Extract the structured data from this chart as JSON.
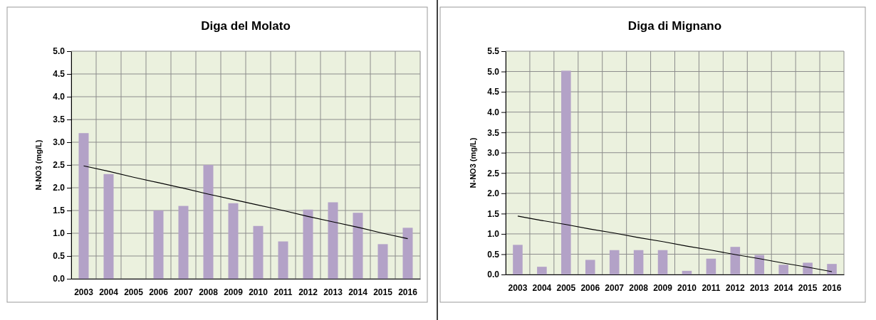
{
  "chart_data": [
    {
      "type": "bar",
      "title": "Diga del Molato",
      "ylabel": "N-NO3 (mg/L)",
      "categories": [
        "2003",
        "2004",
        "2005",
        "2006",
        "2007",
        "2008",
        "2009",
        "2010",
        "2011",
        "2012",
        "2013",
        "2014",
        "2015",
        "2016"
      ],
      "series": [
        {
          "color": "#b3a2c7",
          "values": [
            3.2,
            2.3,
            null,
            1.5,
            1.6,
            2.5,
            1.66,
            1.16,
            0.82,
            1.52,
            1.68,
            1.45,
            0.76,
            1.12
          ]
        },
        {
          "type": "line",
          "color": "#000000",
          "values": [
            2.48,
            2.36,
            2.23,
            2.11,
            1.99,
            1.86,
            1.74,
            1.62,
            1.5,
            1.37,
            1.25,
            1.13,
            1.0,
            0.88
          ]
        }
      ],
      "ylim": [
        0,
        5
      ],
      "yticks": [
        {
          "value": 0,
          "label": "0.0"
        },
        {
          "value": 0.5,
          "label": "0.5"
        },
        {
          "value": 1,
          "label": "1.0"
        },
        {
          "value": 1.5,
          "label": "1.5"
        },
        {
          "value": 2,
          "label": "2.0"
        },
        {
          "value": 2.5,
          "label": "2.5"
        },
        {
          "value": 3,
          "label": "3.0"
        },
        {
          "value": 3.5,
          "label": "3.5"
        },
        {
          "value": 4,
          "label": "4.0"
        },
        {
          "value": 4.5,
          "label": "4.5"
        },
        {
          "value": 5,
          "label": "5.0"
        }
      ],
      "grid": true
    },
    {
      "type": "bar",
      "title": "Diga di Mignano",
      "ylabel": "N-NO3 (mg/L)",
      "categories": [
        "2003",
        "2004",
        "2005",
        "2006",
        "2007",
        "2008",
        "2009",
        "2010",
        "2011",
        "2012",
        "2013",
        "2014",
        "2015",
        "2016"
      ],
      "series": [
        {
          "color": "#b3a2c7",
          "values": [
            0.73,
            0.19,
            5.02,
            0.36,
            0.6,
            0.6,
            0.6,
            0.09,
            0.39,
            0.68,
            0.48,
            0.24,
            0.29,
            0.26
          ]
        },
        {
          "type": "line",
          "color": "#000000",
          "values": [
            1.44,
            1.33,
            1.23,
            1.12,
            1.02,
            0.91,
            0.81,
            0.7,
            0.6,
            0.49,
            0.39,
            0.28,
            0.18,
            0.07
          ]
        }
      ],
      "ylim": [
        0,
        5.5
      ],
      "yticks": [
        {
          "value": 0,
          "label": "0.0"
        },
        {
          "value": 0.5,
          "label": "0.5"
        },
        {
          "value": 1,
          "label": "1.0"
        },
        {
          "value": 1.5,
          "label": "1.5"
        },
        {
          "value": 2,
          "label": "2.0"
        },
        {
          "value": 2.5,
          "label": "2.5"
        },
        {
          "value": 3,
          "label": "3.0"
        },
        {
          "value": 3.5,
          "label": "3.5"
        },
        {
          "value": 4,
          "label": "4.0"
        },
        {
          "value": 4.5,
          "label": "4.5"
        },
        {
          "value": 5,
          "label": "5.0"
        },
        {
          "value": 5.5,
          "label": "5.5"
        }
      ],
      "grid": true
    }
  ]
}
